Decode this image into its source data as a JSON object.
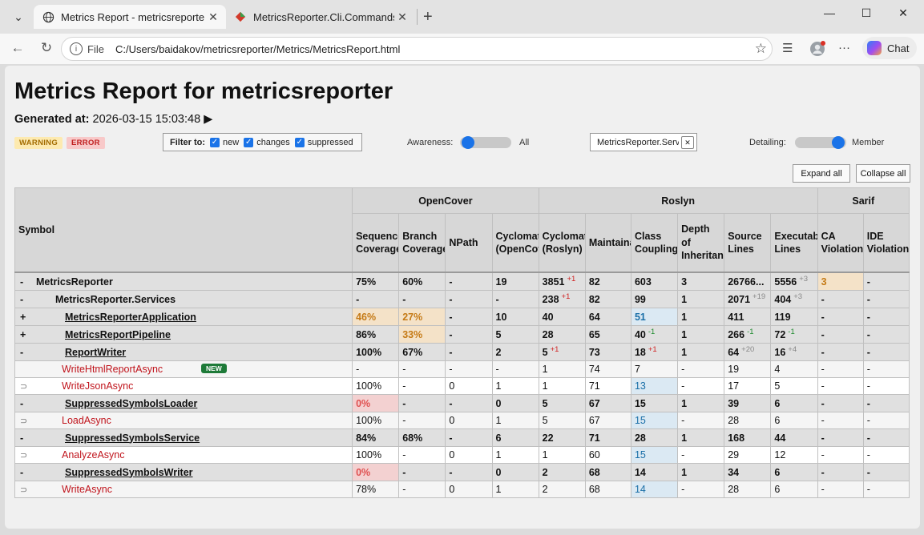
{
  "browser": {
    "tabs": [
      {
        "title": "Metrics Report - metricsreporter",
        "favicon": "globe-icon",
        "active": true
      },
      {
        "title": "MetricsReporter.Cli.Commands.Bu",
        "favicon": "diamond-icon",
        "active": false
      }
    ],
    "address": {
      "scheme_label": "File",
      "url": "C:/Users/baidakov/metricsreporter/Metrics/MetricsReport.html"
    },
    "chat_label": "Chat"
  },
  "report": {
    "title": "Metrics Report for metricsreporter",
    "generated_label": "Generated at:",
    "generated_value": "2026-03-15 15:03:48",
    "badges": {
      "warning": "WARNING",
      "error": "ERROR"
    },
    "filter": {
      "label": "Filter to:",
      "options": [
        "new",
        "changes",
        "suppressed"
      ]
    },
    "awareness": {
      "label": "Awareness:",
      "value": "All"
    },
    "symbol_filter": "MetricsReporter.Services",
    "detailing": {
      "label": "Detailing:",
      "value": "Member"
    },
    "expand_all": "Expand all",
    "collapse_all": "Collapse all"
  },
  "table": {
    "groups": {
      "symbol": "Symbol",
      "opencover": "OpenCover",
      "roslyn": "Roslyn",
      "sarif": "Sarif"
    },
    "columns": [
      "Sequence Coverage",
      "Branch Coverage",
      "NPath",
      "Cyclomatic (OpenCover)",
      "Cyclomatic (Roslyn)",
      "Maintainability",
      "Class Coupling",
      "Depth of Inheritance",
      "Source Lines",
      "Executable Lines",
      "CA Violations",
      "IDE Violations"
    ],
    "rows": [
      {
        "kind": "sum",
        "lvl": 0,
        "exp": "-",
        "name": "MetricsReporter",
        "ul": false,
        "cells": [
          {
            "v": "75%"
          },
          {
            "v": "60%"
          },
          {
            "v": "-"
          },
          {
            "v": "19"
          },
          {
            "v": "3851",
            "d": "+1",
            "dc": "red"
          },
          {
            "v": "82"
          },
          {
            "v": "603"
          },
          {
            "v": "3"
          },
          {
            "v": "26766..."
          },
          {
            "v": "5556",
            "d": "+3",
            "dc": "grey"
          },
          {
            "v": "3",
            "cls": "sev"
          },
          {
            "v": "-"
          }
        ]
      },
      {
        "kind": "sum",
        "lvl": 1,
        "exp": "-",
        "name": "MetricsReporter.Services",
        "ul": false,
        "cells": [
          {
            "v": "-"
          },
          {
            "v": "-"
          },
          {
            "v": "-"
          },
          {
            "v": "-"
          },
          {
            "v": "238",
            "d": "+1",
            "dc": "red"
          },
          {
            "v": "82"
          },
          {
            "v": "99"
          },
          {
            "v": "1"
          },
          {
            "v": "2071",
            "d": "+19",
            "dc": "grey"
          },
          {
            "v": "404",
            "d": "+3",
            "dc": "grey"
          },
          {
            "v": "-"
          },
          {
            "v": "-"
          }
        ]
      },
      {
        "kind": "sum",
        "lvl": 2,
        "exp": "+",
        "name": "MetricsReporterApplication",
        "ul": true,
        "cells": [
          {
            "v": "46%",
            "cls": "warn"
          },
          {
            "v": "27%",
            "cls": "warn"
          },
          {
            "v": "-"
          },
          {
            "v": "10"
          },
          {
            "v": "40"
          },
          {
            "v": "64"
          },
          {
            "v": "51",
            "cls": "info"
          },
          {
            "v": "1"
          },
          {
            "v": "411"
          },
          {
            "v": "119"
          },
          {
            "v": "-"
          },
          {
            "v": "-"
          }
        ]
      },
      {
        "kind": "sum",
        "lvl": 2,
        "exp": "+",
        "name": "MetricsReportPipeline",
        "ul": true,
        "cells": [
          {
            "v": "86%"
          },
          {
            "v": "33%",
            "cls": "warn"
          },
          {
            "v": "-"
          },
          {
            "v": "5"
          },
          {
            "v": "28"
          },
          {
            "v": "65"
          },
          {
            "v": "40",
            "d": "-1",
            "dc": "green"
          },
          {
            "v": "1"
          },
          {
            "v": "266",
            "d": "-1",
            "dc": "green"
          },
          {
            "v": "72",
            "d": "-1",
            "dc": "green"
          },
          {
            "v": "-"
          },
          {
            "v": "-"
          }
        ]
      },
      {
        "kind": "sum",
        "lvl": 2,
        "exp": "-",
        "name": "ReportWriter",
        "ul": true,
        "cells": [
          {
            "v": "100%"
          },
          {
            "v": "67%"
          },
          {
            "v": "-"
          },
          {
            "v": "2"
          },
          {
            "v": "5",
            "d": "+1",
            "dc": "red"
          },
          {
            "v": "73"
          },
          {
            "v": "18",
            "d": "+1",
            "dc": "red"
          },
          {
            "v": "1"
          },
          {
            "v": "64",
            "d": "+20",
            "dc": "grey"
          },
          {
            "v": "16",
            "d": "+4",
            "dc": "grey"
          },
          {
            "v": "-"
          },
          {
            "v": "-"
          }
        ]
      },
      {
        "kind": "mem",
        "name": "WriteHtmlReportAsync",
        "ext": "",
        "new": "NEW",
        "alt": true,
        "cells": [
          {
            "v": "-"
          },
          {
            "v": "-"
          },
          {
            "v": "-"
          },
          {
            "v": "-"
          },
          {
            "v": "1"
          },
          {
            "v": "74"
          },
          {
            "v": "7"
          },
          {
            "v": "-"
          },
          {
            "v": "19"
          },
          {
            "v": "4"
          },
          {
            "v": "-"
          },
          {
            "v": "-"
          }
        ]
      },
      {
        "kind": "mem",
        "name": "WriteJsonAsync",
        "ext": "⊃",
        "alt": false,
        "cells": [
          {
            "v": "100%"
          },
          {
            "v": "-"
          },
          {
            "v": "0"
          },
          {
            "v": "1"
          },
          {
            "v": "1"
          },
          {
            "v": "71"
          },
          {
            "v": "13",
            "cls": "infobg"
          },
          {
            "v": "-"
          },
          {
            "v": "17"
          },
          {
            "v": "5"
          },
          {
            "v": "-"
          },
          {
            "v": "-"
          }
        ]
      },
      {
        "kind": "sum",
        "lvl": 2,
        "exp": "-",
        "name": "SuppressedSymbolsLoader",
        "ul": true,
        "cells": [
          {
            "v": "0%",
            "cls": "err"
          },
          {
            "v": "-"
          },
          {
            "v": "-"
          },
          {
            "v": "0"
          },
          {
            "v": "5"
          },
          {
            "v": "67"
          },
          {
            "v": "15"
          },
          {
            "v": "1"
          },
          {
            "v": "39"
          },
          {
            "v": "6"
          },
          {
            "v": "-"
          },
          {
            "v": "-"
          }
        ]
      },
      {
        "kind": "mem",
        "name": "LoadAsync",
        "ext": "⊃",
        "alt": true,
        "cells": [
          {
            "v": "100%"
          },
          {
            "v": "-"
          },
          {
            "v": "0"
          },
          {
            "v": "1"
          },
          {
            "v": "5"
          },
          {
            "v": "67"
          },
          {
            "v": "15",
            "cls": "infobg"
          },
          {
            "v": "-"
          },
          {
            "v": "28"
          },
          {
            "v": "6"
          },
          {
            "v": "-"
          },
          {
            "v": "-"
          }
        ]
      },
      {
        "kind": "sum",
        "lvl": 2,
        "exp": "-",
        "name": "SuppressedSymbolsService",
        "ul": true,
        "cells": [
          {
            "v": "84%"
          },
          {
            "v": "68%"
          },
          {
            "v": "-"
          },
          {
            "v": "6"
          },
          {
            "v": "22"
          },
          {
            "v": "71"
          },
          {
            "v": "28"
          },
          {
            "v": "1"
          },
          {
            "v": "168"
          },
          {
            "v": "44"
          },
          {
            "v": "-"
          },
          {
            "v": "-"
          }
        ]
      },
      {
        "kind": "mem",
        "name": "AnalyzeAsync",
        "ext": "⊃",
        "alt": false,
        "cells": [
          {
            "v": "100%"
          },
          {
            "v": "-"
          },
          {
            "v": "0"
          },
          {
            "v": "1"
          },
          {
            "v": "1"
          },
          {
            "v": "60"
          },
          {
            "v": "15",
            "cls": "infobg"
          },
          {
            "v": "-"
          },
          {
            "v": "29"
          },
          {
            "v": "12"
          },
          {
            "v": "-"
          },
          {
            "v": "-"
          }
        ]
      },
      {
        "kind": "sum",
        "lvl": 2,
        "exp": "-",
        "name": "SuppressedSymbolsWriter",
        "ul": true,
        "cells": [
          {
            "v": "0%",
            "cls": "err"
          },
          {
            "v": "-"
          },
          {
            "v": "-"
          },
          {
            "v": "0"
          },
          {
            "v": "2"
          },
          {
            "v": "68"
          },
          {
            "v": "14"
          },
          {
            "v": "1"
          },
          {
            "v": "34"
          },
          {
            "v": "6"
          },
          {
            "v": "-"
          },
          {
            "v": "-"
          }
        ]
      },
      {
        "kind": "mem",
        "name": "WriteAsync",
        "ext": "⊃",
        "alt": true,
        "cells": [
          {
            "v": "78%"
          },
          {
            "v": "-"
          },
          {
            "v": "0"
          },
          {
            "v": "1"
          },
          {
            "v": "2"
          },
          {
            "v": "68"
          },
          {
            "v": "14",
            "cls": "infobg"
          },
          {
            "v": "-"
          },
          {
            "v": "28"
          },
          {
            "v": "6"
          },
          {
            "v": "-"
          },
          {
            "v": "-"
          }
        ]
      }
    ]
  },
  "colors": {
    "warning_bg": "#f4e2c8",
    "error_bg": "#f3d1d1",
    "accent": "#1a73e8",
    "member_name": "#c0141c"
  }
}
